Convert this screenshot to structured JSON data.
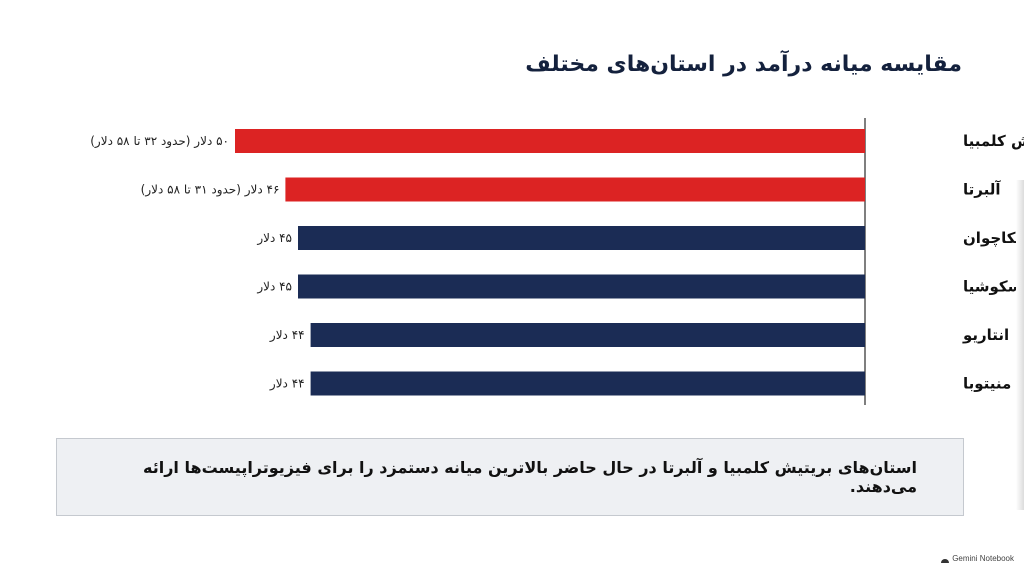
{
  "chart_data": {
    "type": "bar",
    "orientation": "horizontal",
    "title": "مقایسه میانه درآمد در استان‌های مختلف",
    "categories": [
      "بریتیش کلمبیا",
      "آلبرتا",
      "ساسکاچوان",
      "نوا اسکوشیا",
      "انتاریو",
      "منیتوبا"
    ],
    "values": [
      50,
      46,
      45,
      45,
      44,
      44
    ],
    "value_labels": [
      "۵۰ دلار (حدود ۳۲ تا ۵۸ دلار)",
      "۴۶ دلار (حدود ۳۱ تا ۵۸ دلار)",
      "۴۵ دلار",
      "۴۵ دلار",
      "۴۴ دلار",
      "۴۴ دلار"
    ],
    "highlighted": [
      true,
      true,
      false,
      false,
      false,
      false
    ],
    "colors": {
      "highlight": "#dc2323",
      "default": "#1b2c55",
      "axis": "#555555"
    },
    "xlim": [
      0,
      50
    ],
    "grid": false,
    "legend": "none"
  },
  "note": "استان‌های بریتیش کلمبیا و آلبرتا در حال حاضر بالاترین میانه دستمزد را برای فیزیوتراپیست‌ها ارائه می‌دهند.",
  "watermark": "Gemini Notebook"
}
